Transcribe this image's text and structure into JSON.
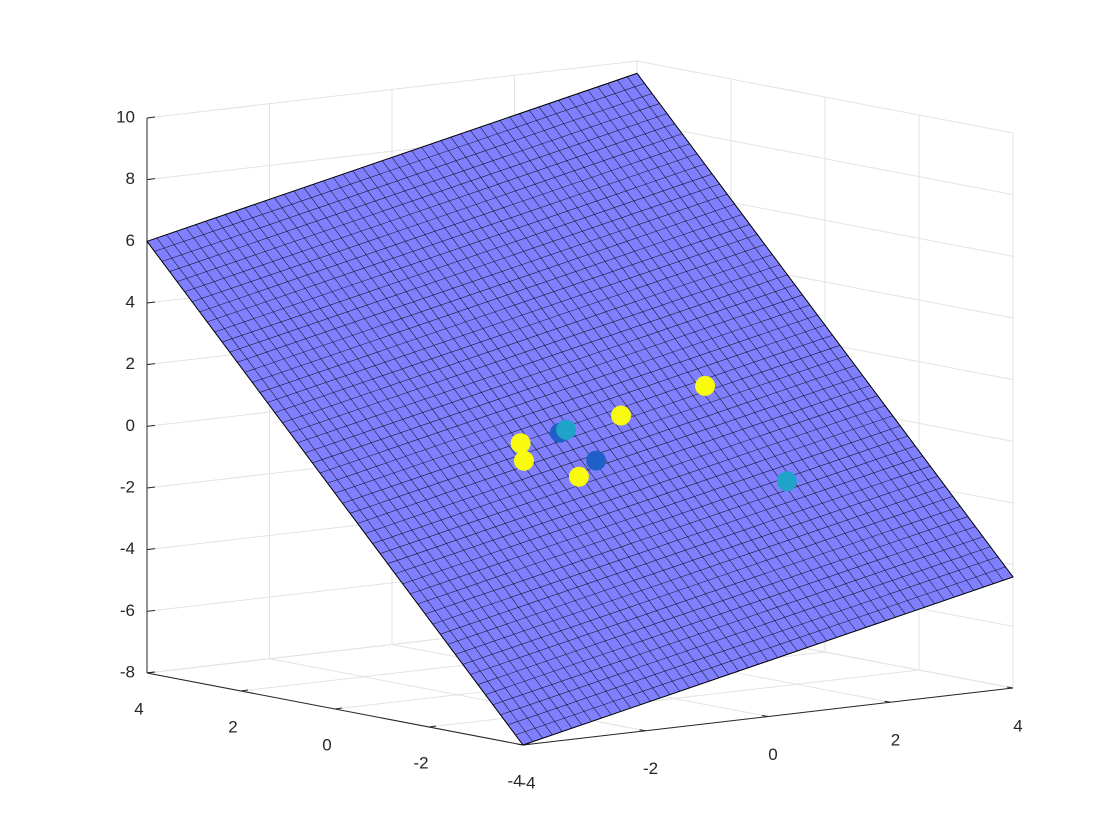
{
  "chart_data": {
    "type": "surface-scatter3d",
    "xlim": [
      -4,
      4
    ],
    "ylim": [
      -4,
      4
    ],
    "zlim": [
      -8,
      10
    ],
    "xticks": [
      -4,
      -2,
      0,
      2,
      4
    ],
    "yticks": [
      -4,
      -2,
      0,
      2,
      4
    ],
    "zticks": [
      -8,
      -6,
      -4,
      -2,
      0,
      2,
      4,
      6,
      8,
      10
    ],
    "grid": true,
    "surface": {
      "x": [
        -4,
        4
      ],
      "y": [
        -4,
        4
      ],
      "z": [
        [
          -8,
          -4.4
        ],
        [
          6,
          9.6
        ]
      ],
      "color": "#8080ff",
      "edgecolor": "#000000"
    },
    "series": [
      {
        "color": "#f9fb0e",
        "x": [
          -1.1,
          -1.23,
          0.47,
          1.85,
          -0.67
        ],
        "y": [
          -0.17,
          -0.41,
          -0.26,
          -0.25,
          -0.85
        ],
        "z": [
          0.0,
          -0.47,
          0.56,
          1.2,
          -0.99
        ]
      },
      {
        "color": "#1f60c8",
        "x": [
          -0.49,
          -0.29
        ],
        "y": [
          -0.21,
          -0.72
        ],
        "z": [
          0.21,
          -0.59
        ]
      },
      {
        "color": "#1fa3c8",
        "x": [
          -0.38,
          1.99
        ],
        "y": [
          -0.2,
          -1.81
        ],
        "z": [
          0.28,
          -1.47
        ]
      }
    ]
  }
}
